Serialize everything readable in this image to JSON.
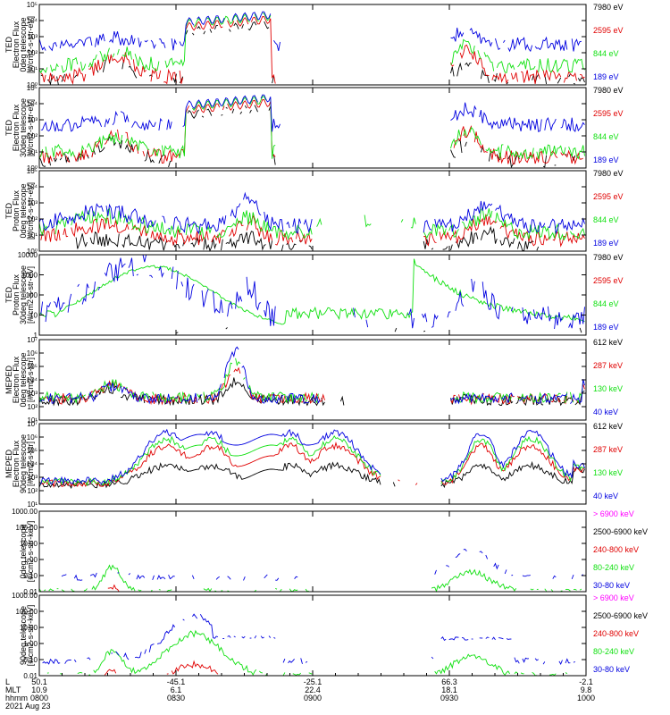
{
  "colors": {
    "black": "#000000",
    "red": "#e00000",
    "green": "#10e010",
    "blue": "#0000e0",
    "magenta": "#ff00ff"
  },
  "x_axis": {
    "row_labels": [
      "L",
      "MLT",
      "hhmm",
      "2021 Aug 23"
    ],
    "ticks": [
      {
        "L": "50.1",
        "MLT": "10.9",
        "hhmm": "0800"
      },
      {
        "L": "-45.1",
        "MLT": "6.1",
        "hhmm": "0830"
      },
      {
        "L": "-25.1",
        "MLT": "22.4",
        "hhmm": "0900"
      },
      {
        "L": "66.3",
        "MLT": "18.1",
        "hhmm": "0930"
      },
      {
        "L": "-2.1",
        "MLT": "9.8",
        "hhmm": "1000"
      }
    ]
  },
  "chart_data": [
    {
      "type": "line",
      "ylabel": [
        "TED",
        "Electron Flux",
        "0deg telescope",
        "[#/cm2-s-str-eV]"
      ],
      "scale": "log",
      "ylim": [
        1,
        100000
      ],
      "ytick_labels": [
        "10⁰",
        "10¹",
        "10²",
        "10³",
        "10⁴",
        "10⁵"
      ],
      "series": [
        {
          "name": "7980 eV",
          "color": "#000000"
        },
        {
          "name": "2595 eV",
          "color": "#e00000"
        },
        {
          "name": "844 eV",
          "color": "#10e010"
        },
        {
          "name": "189 eV",
          "color": "#0000e0"
        }
      ]
    },
    {
      "type": "line",
      "ylabel": [
        "TED",
        "Electron Flux",
        "30deg telescope",
        "[#/cm2-s-str-eV]"
      ],
      "scale": "log",
      "ylim": [
        1,
        100000
      ],
      "ytick_labels": [
        "10⁰",
        "10¹",
        "10²",
        "10³",
        "10⁴",
        "10⁵"
      ],
      "series": [
        {
          "name": "7980 eV",
          "color": "#000000"
        },
        {
          "name": "2595 eV",
          "color": "#e00000"
        },
        {
          "name": "844 eV",
          "color": "#10e010"
        },
        {
          "name": "189 eV",
          "color": "#0000e0"
        }
      ]
    },
    {
      "type": "line",
      "ylabel": [
        "TED",
        "Proton Flux",
        "0deg telescope",
        "[#/cm2-s-str-eV]"
      ],
      "scale": "log",
      "ylim": [
        1,
        100000
      ],
      "ytick_labels": [
        "10⁰",
        "10¹",
        "10²",
        "10³",
        "10⁴",
        "10⁵"
      ],
      "series": [
        {
          "name": "7980 eV",
          "color": "#000000"
        },
        {
          "name": "2595 eV",
          "color": "#e00000"
        },
        {
          "name": "844 eV",
          "color": "#10e010"
        },
        {
          "name": "189 eV",
          "color": "#0000e0"
        }
      ]
    },
    {
      "type": "line",
      "ylabel": [
        "TED",
        "Proton Flux",
        "30deg telescope",
        "[#/cm2-s-str-eV]"
      ],
      "scale": "log",
      "ylim": [
        1,
        10000
      ],
      "ytick_labels": [
        "1",
        "10",
        "100",
        "1000",
        "10000"
      ],
      "series": [
        {
          "name": "7980 eV",
          "color": "#000000"
        },
        {
          "name": "2595 eV",
          "color": "#e00000"
        },
        {
          "name": "844 eV",
          "color": "#10e010"
        },
        {
          "name": "189 eV",
          "color": "#0000e0"
        }
      ]
    },
    {
      "type": "line",
      "ylabel": [
        "MEPED",
        "Electron Flux",
        "0deg telescope",
        "[#/cm2-s-str]"
      ],
      "scale": "log",
      "ylim": [
        10,
        10000000
      ],
      "ytick_labels": [
        "10¹",
        "10²",
        "10³",
        "10⁴",
        "10⁵",
        "10⁶",
        "10⁷"
      ],
      "series": [
        {
          "name": "612 keV",
          "color": "#000000"
        },
        {
          "name": "287 keV",
          "color": "#e00000"
        },
        {
          "name": "130 keV",
          "color": "#10e010"
        },
        {
          "name": "40 keV",
          "color": "#0000e0"
        }
      ]
    },
    {
      "type": "line",
      "ylabel": [
        "MEPED",
        "Electron Flux",
        "90deg telescope",
        "[#/cm2-s-str]"
      ],
      "scale": "log",
      "ylim": [
        10,
        10000000
      ],
      "ytick_labels": [
        "10¹",
        "10²",
        "10³",
        "10⁴",
        "10⁵",
        "10⁶",
        "10⁷"
      ],
      "series": [
        {
          "name": "612 keV",
          "color": "#000000"
        },
        {
          "name": "287 keV",
          "color": "#e00000"
        },
        {
          "name": "130 keV",
          "color": "#10e010"
        },
        {
          "name": "40 keV",
          "color": "#0000e0"
        }
      ]
    },
    {
      "type": "line",
      "ylabel": [
        "",
        "",
        "0deg telescope",
        "[#/cm2-s-str-keV]"
      ],
      "scale": "log",
      "ylim": [
        0.01,
        1000
      ],
      "ytick_labels": [
        "0.01",
        "0.10",
        "1.00",
        "10.00",
        "100.00",
        "1000.00"
      ],
      "series": [
        {
          "name": "> 6900 keV",
          "color": "#ff00ff"
        },
        {
          "name": "2500-6900 keV",
          "color": "#000000"
        },
        {
          "name": "240-800 keV",
          "color": "#e00000"
        },
        {
          "name": "80-240 keV",
          "color": "#10e010"
        },
        {
          "name": "30-80 keV",
          "color": "#0000e0"
        }
      ]
    },
    {
      "type": "line",
      "ylabel": [
        "",
        "",
        "90deg telescope",
        "[#/cm2-s-str-keV]"
      ],
      "scale": "log",
      "ylim": [
        0.01,
        1000
      ],
      "ytick_labels": [
        "0.01",
        "0.10",
        "1.00",
        "10.00",
        "100.00",
        "1000.00"
      ],
      "series": [
        {
          "name": "> 6900 keV",
          "color": "#ff00ff"
        },
        {
          "name": "2500-6900 keV",
          "color": "#000000"
        },
        {
          "name": "240-800 keV",
          "color": "#e00000"
        },
        {
          "name": "80-240 keV",
          "color": "#10e010"
        },
        {
          "name": "30-80 keV",
          "color": "#0000e0"
        }
      ]
    }
  ]
}
